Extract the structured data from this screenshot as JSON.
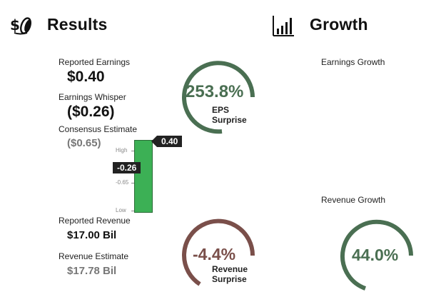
{
  "results": {
    "title": "Results",
    "icon": "coins-dollar-icon",
    "reported_earnings_label": "Reported Earnings",
    "reported_earnings_value": "$0.40",
    "earnings_whisper_label": "Earnings Whisper",
    "earnings_whisper_value": "($0.26)",
    "consensus_label": "Consensus Estimate",
    "consensus_value": "($0.65)",
    "reported_revenue_label": "Reported Revenue",
    "reported_revenue_value": "$17.00 Bil",
    "revenue_estimate_label": "Revenue Estimate",
    "revenue_estimate_value": "$17.78 Bil"
  },
  "range_bar": {
    "high_label": "High",
    "low_label": "Low",
    "mid_label": "-0.65",
    "actual_tag": "0.40",
    "whisper_tag": "-0.26",
    "bar_color": "#3cb055"
  },
  "eps_gauge": {
    "value": "253.8%",
    "sub1": "EPS",
    "sub2": "Surprise",
    "color": "#4a6f52"
  },
  "revenue_gauge": {
    "value": "-4.4%",
    "sub1": "Revenue",
    "sub2": "Surprise",
    "color": "#7a4f4a"
  },
  "growth": {
    "title": "Growth",
    "icon": "bar-chart-icon",
    "earnings_growth_label": "Earnings Growth",
    "revenue_growth_label": "Revenue Growth",
    "revenue_growth_value": "44.0%",
    "color": "#4a6f52"
  }
}
